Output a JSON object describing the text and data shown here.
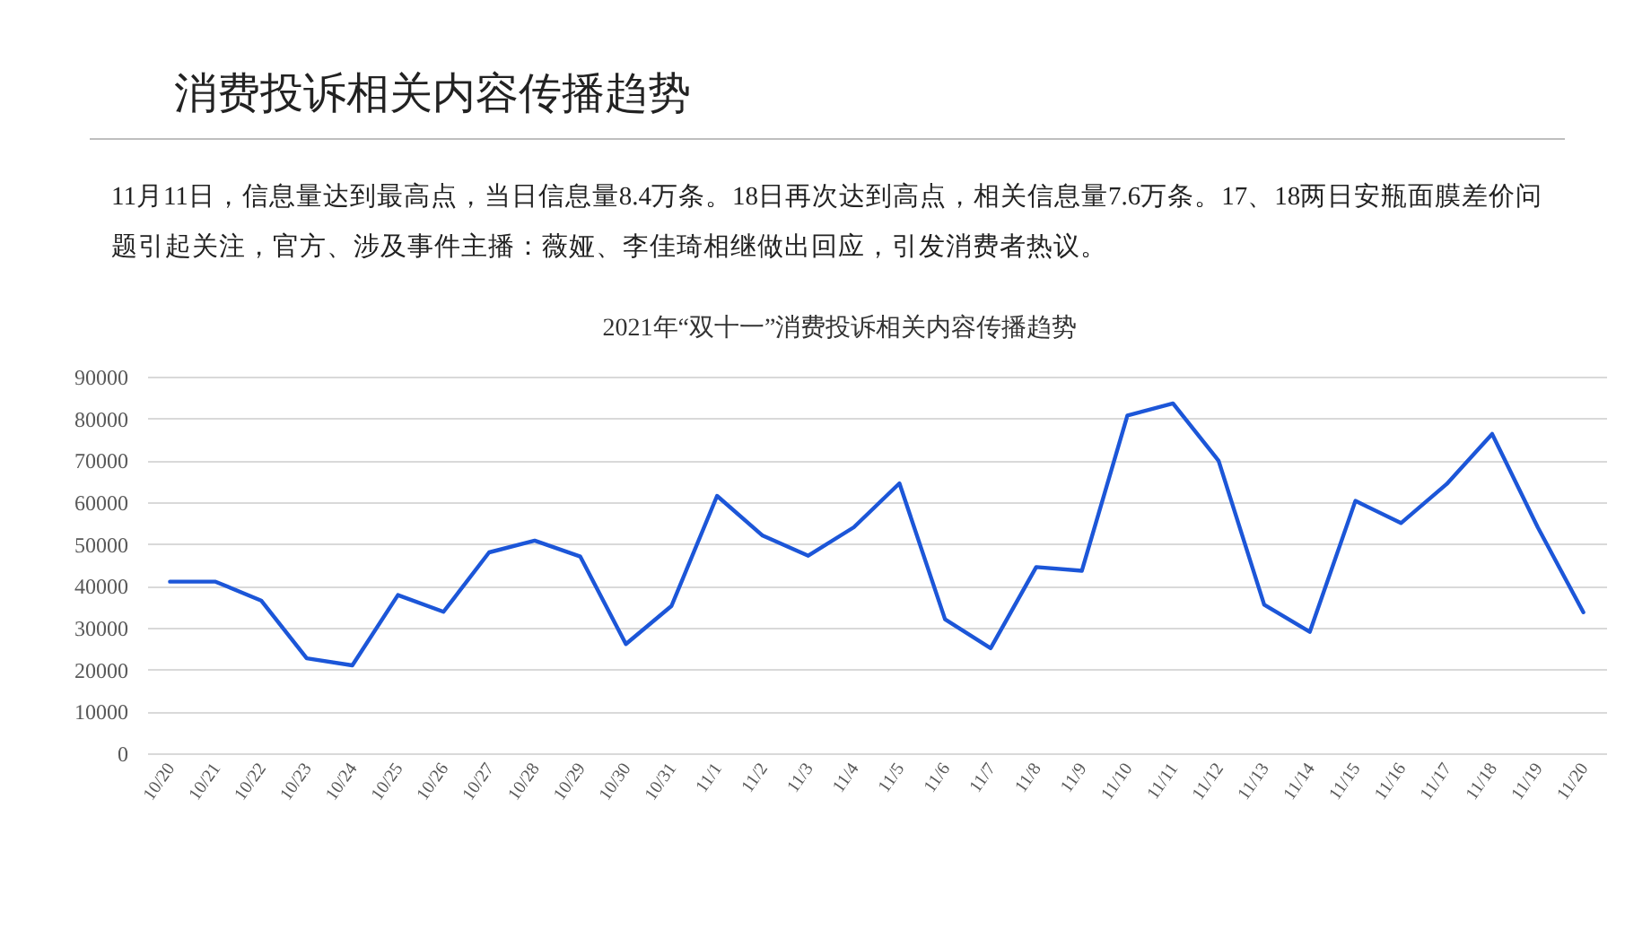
{
  "chart_data": {
    "type": "line",
    "title": "2021年“双十一”消费投诉相关内容传播趋势",
    "annotations": [
      "消费投诉相关内容传播趋势",
      "11月11日，信息量达到最高点，当日信息量8.4万条。18日再次达到高点，相关信息量7.6万条。17、18两日安瓶面膜差价问题引起关注，官方、涉及事件主播：薇娅、李佳琦相继做出回应，引发消费者热议。"
    ],
    "categories": [
      "10/20",
      "10/21",
      "10/22",
      "10/23",
      "10/24",
      "10/25",
      "10/26",
      "10/27",
      "10/28",
      "10/29",
      "10/30",
      "10/31",
      "11/1",
      "11/2",
      "11/3",
      "11/4",
      "11/5",
      "11/6",
      "11/7",
      "11/8",
      "11/9",
      "11/10",
      "11/11",
      "11/12",
      "11/13",
      "11/14",
      "11/15",
      "11/16",
      "11/17",
      "11/18",
      "11/19",
      "11/20"
    ],
    "series": [
      {
        "color": "#1c56d8",
        "values": [
          41000,
          41000,
          36500,
          22700,
          21000,
          37800,
          33800,
          48000,
          50800,
          47000,
          26100,
          35200,
          61500,
          52000,
          47200,
          54000,
          64500,
          32000,
          25100,
          44500,
          43600,
          80700,
          83600,
          69900,
          35500,
          29000,
          60300,
          55000,
          64300,
          76300,
          54000,
          33700
        ]
      }
    ],
    "ylim": [
      0,
      90000
    ],
    "yticks": [
      0,
      10000,
      20000,
      30000,
      40000,
      50000,
      60000,
      70000,
      80000,
      90000
    ],
    "grid": "y"
  }
}
